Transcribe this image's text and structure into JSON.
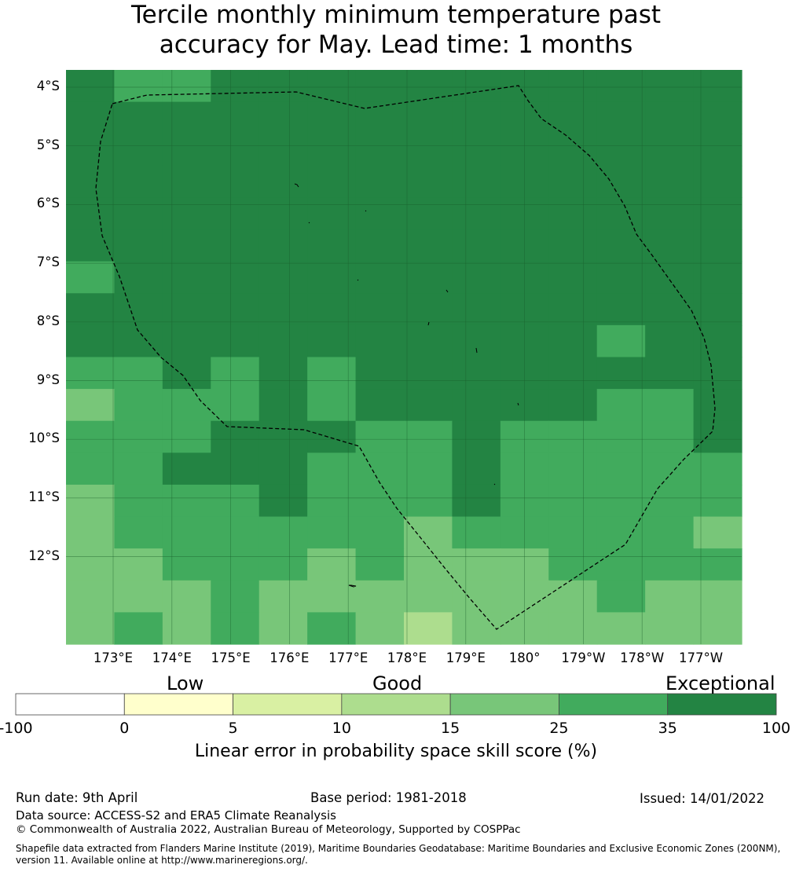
{
  "title": {
    "line1": "Tercile monthly minimum temperature past",
    "line2": "accuracy for May. Lead time: 1 months"
  },
  "map": {
    "lat_labels": [
      "4°S",
      "5°S",
      "6°S",
      "7°S",
      "8°S",
      "9°S",
      "10°S",
      "11°S",
      "12°S"
    ],
    "lon_labels": [
      "173°E",
      "174°E",
      "175°E",
      "176°E",
      "177°E",
      "178°E",
      "179°E",
      "180°",
      "179°W",
      "178°W",
      "177°W"
    ],
    "boundary_style": "dashed",
    "grid_value_rows": [
      [
        35,
        30,
        30,
        35,
        35,
        35,
        35,
        35,
        35,
        35,
        35,
        35,
        35,
        35
      ],
      [
        35,
        35,
        35,
        35,
        35,
        35,
        35,
        35,
        35,
        35,
        35,
        35,
        35,
        35
      ],
      [
        35,
        35,
        35,
        35,
        35,
        35,
        35,
        35,
        35,
        35,
        35,
        35,
        35,
        35
      ],
      [
        35,
        35,
        35,
        35,
        35,
        35,
        35,
        35,
        35,
        35,
        35,
        35,
        35,
        35
      ],
      [
        35,
        35,
        35,
        35,
        35,
        35,
        35,
        35,
        35,
        35,
        35,
        35,
        35,
        35
      ],
      [
        35,
        35,
        35,
        35,
        35,
        35,
        35,
        35,
        35,
        35,
        35,
        35,
        35,
        35
      ],
      [
        30,
        35,
        35,
        35,
        35,
        35,
        35,
        35,
        35,
        35,
        35,
        35,
        35,
        35
      ],
      [
        35,
        35,
        35,
        35,
        35,
        35,
        35,
        35,
        35,
        35,
        35,
        35,
        35,
        35
      ],
      [
        35,
        35,
        35,
        35,
        35,
        35,
        35,
        35,
        35,
        35,
        35,
        30,
        35,
        35
      ],
      [
        30,
        30,
        35,
        30,
        35,
        30,
        35,
        35,
        35,
        35,
        35,
        35,
        35,
        35
      ],
      [
        20,
        30,
        30,
        30,
        35,
        30,
        35,
        35,
        35,
        35,
        35,
        30,
        30,
        35
      ],
      [
        30,
        30,
        30,
        35,
        35,
        35,
        30,
        30,
        35,
        30,
        30,
        30,
        30,
        35
      ],
      [
        30,
        30,
        35,
        35,
        35,
        30,
        30,
        30,
        35,
        30,
        30,
        30,
        30,
        30
      ],
      [
        20,
        30,
        30,
        30,
        35,
        30,
        30,
        30,
        35,
        30,
        30,
        30,
        30,
        30
      ],
      [
        20,
        30,
        30,
        30,
        30,
        30,
        30,
        20,
        30,
        30,
        30,
        30,
        30,
        20
      ],
      [
        20,
        20,
        30,
        30,
        30,
        20,
        30,
        20,
        20,
        20,
        30,
        30,
        30,
        30
      ],
      [
        20,
        20,
        20,
        30,
        20,
        20,
        20,
        20,
        20,
        20,
        20,
        30,
        20,
        20
      ],
      [
        20,
        30,
        20,
        30,
        20,
        30,
        20,
        10,
        20,
        20,
        20,
        20,
        20,
        20
      ]
    ]
  },
  "legend": {
    "categories": [
      "Low",
      "Good",
      "Exceptional"
    ],
    "bins": [
      {
        "from": -100,
        "to": 0,
        "color": "#ffffff"
      },
      {
        "from": 0,
        "to": 5,
        "color": "#ffffcc"
      },
      {
        "from": 5,
        "to": 10,
        "color": "#d9f0a3"
      },
      {
        "from": 10,
        "to": 15,
        "color": "#addd8e"
      },
      {
        "from": 15,
        "to": 25,
        "color": "#78c679"
      },
      {
        "from": 25,
        "to": 35,
        "color": "#41ab5d"
      },
      {
        "from": 35,
        "to": 100,
        "color": "#238443"
      }
    ],
    "ticks": [
      "-100",
      "0",
      "5",
      "10",
      "15",
      "25",
      "35",
      "100"
    ],
    "label": "Linear error in probability space skill score (%)"
  },
  "footer": {
    "run_date": "Run date: 9th April",
    "base_period": "Base period: 1981-2018",
    "issued": "Issued: 14/01/2022",
    "data_source": "Data source: ACCESS-S2 and ERA5 Climate Reanalysis",
    "copyright": "© Commonwealth of Australia 2022, Australian Bureau of Meteorology, Supported by COSPPac",
    "shapefile_line1": "Shapefile data extracted from Flanders Marine Institute (2019), Maritime Boundaries Geodatabase: Maritime Boundaries and Exclusive Economic Zones (200NM),",
    "shapefile_line2": "version 11. Available online at http://www.marineregions.org/."
  }
}
